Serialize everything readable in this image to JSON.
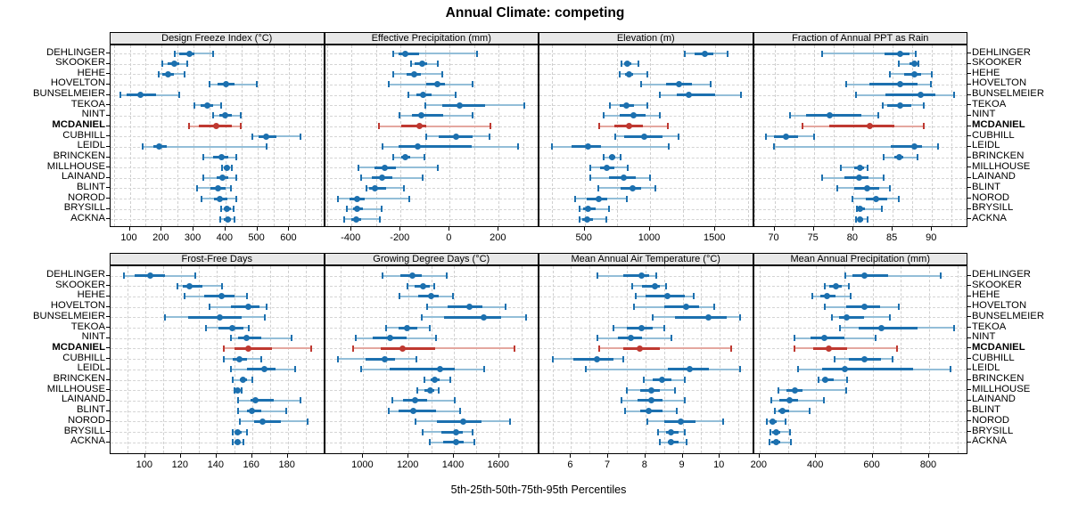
{
  "title": "Annual Climate: competing",
  "caption": "5th-25th-50th-75th-95th Percentiles",
  "colors": {
    "normal": "#1C70AF",
    "normal_light": "#93BED8",
    "highlight": "#BF3931",
    "highlight_light": "#E4A79F",
    "header_bg": "#E8E8E8",
    "grid": "#CFCFCF",
    "border": "#000000"
  },
  "chart_data": {
    "type": "dotplot",
    "title": "Annual Climate: competing",
    "caption": "5th-25th-50th-75th-95th Percentiles",
    "percentiles": [
      "5th",
      "25th",
      "50th",
      "75th",
      "95th"
    ],
    "legend_position": "none",
    "grid": "dashed",
    "stations": [
      "DEHLINGER",
      "SKOOKER",
      "HEHE",
      "HOVELTON",
      "BUNSELMEIER",
      "TEKOA",
      "NINT",
      "MCDANIEL",
      "CUBHILL",
      "LEIDL",
      "BRINCKEN",
      "MILLHOUSE",
      "LAINAND",
      "BLINT",
      "NOROD",
      "BRYSILL",
      "ACKNA"
    ],
    "highlight_station": "MCDANIEL",
    "panels": [
      {
        "title": "Design Freeze Index (°C)",
        "row": 0,
        "col": 0,
        "ticks": [
          100,
          200,
          300,
          400,
          500,
          600
        ],
        "xlim": [
          40,
          712
        ],
        "grid_step": 50,
        "values": [
          [
            240,
            256,
            286,
            303,
            362
          ],
          [
            203,
            219,
            240,
            254,
            280
          ],
          [
            191,
            201,
            219,
            238,
            273
          ],
          [
            350,
            376,
            401,
            427,
            497
          ],
          [
            70,
            89,
            135,
            182,
            256
          ],
          [
            303,
            322,
            343,
            362,
            387
          ],
          [
            362,
            380,
            399,
            419,
            447
          ],
          [
            286,
            317,
            371,
            419,
            447
          ],
          [
            485,
            503,
            528,
            559,
            635
          ],
          [
            140,
            173,
            193,
            216,
            529
          ],
          [
            331,
            362,
            389,
            408,
            433
          ],
          [
            390,
            396,
            405,
            412,
            421
          ],
          [
            331,
            373,
            391,
            410,
            433
          ],
          [
            310,
            352,
            377,
            401,
            417
          ],
          [
            326,
            364,
            382,
            405,
            433
          ],
          [
            387,
            394,
            405,
            417,
            426
          ],
          [
            385,
            396,
            408,
            418,
            429
          ]
        ]
      },
      {
        "title": "Effective Precipitation (mm)",
        "row": 0,
        "col": 1,
        "ticks": [
          -400,
          -200,
          0,
          200
        ],
        "xlim": [
          -508,
          366
        ],
        "grid_step": 100,
        "values": [
          [
            -230,
            -210,
            -180,
            -125,
            110
          ],
          [
            -158,
            -142,
            -113,
            -92,
            -47
          ],
          [
            -230,
            -176,
            -143,
            -116,
            -29
          ],
          [
            -248,
            -94,
            -49,
            -19,
            92
          ],
          [
            -170,
            -134,
            -110,
            -74,
            23
          ],
          [
            -98,
            -31,
            39,
            143,
            306
          ],
          [
            -206,
            -152,
            -116,
            -25,
            95
          ],
          [
            -288,
            -198,
            -122,
            -95,
            167
          ],
          [
            -94,
            -46,
            27,
            92,
            161
          ],
          [
            -275,
            -210,
            -130,
            90,
            280
          ],
          [
            -230,
            -198,
            -180,
            -161,
            -101
          ],
          [
            -371,
            -308,
            -264,
            -218,
            -49
          ],
          [
            -360,
            -318,
            -276,
            -234,
            -110
          ],
          [
            -339,
            -327,
            -306,
            -258,
            -186
          ],
          [
            -455,
            -407,
            -377,
            -347,
            -166
          ],
          [
            -420,
            -395,
            -376,
            -354,
            -278
          ],
          [
            -429,
            -399,
            -381,
            -359,
            -284
          ]
        ]
      },
      {
        "title": "Elevation (m)",
        "row": 0,
        "col": 2,
        "ticks": [
          500,
          1000,
          1500
        ],
        "xlim": [
          154,
          1795
        ],
        "grid_step": 250,
        "values": [
          [
            1266,
            1341,
            1418,
            1482,
            1591
          ],
          [
            784,
            805,
            827,
            857,
            914
          ],
          [
            770,
            811,
            841,
            873,
            977
          ],
          [
            932,
            1123,
            1220,
            1318,
            1464
          ],
          [
            1077,
            1205,
            1300,
            1500,
            1693
          ],
          [
            693,
            766,
            818,
            880,
            982
          ],
          [
            645,
            766,
            873,
            964,
            1077
          ],
          [
            611,
            727,
            839,
            948,
            1136
          ],
          [
            736,
            805,
            955,
            1095,
            1220
          ],
          [
            250,
            400,
            523,
            625,
            1140
          ],
          [
            645,
            686,
            709,
            736,
            773
          ],
          [
            545,
            615,
            670,
            727,
            827
          ],
          [
            545,
            686,
            800,
            890,
            1000
          ],
          [
            607,
            777,
            864,
            932,
            1039
          ],
          [
            425,
            516,
            607,
            675,
            823
          ],
          [
            459,
            486,
            523,
            584,
            686
          ],
          [
            459,
            482,
            516,
            561,
            668
          ]
        ]
      },
      {
        "title": "Fraction of Annual PPT as Rain",
        "row": 0,
        "col": 3,
        "ticks": [
          70,
          75,
          80,
          85,
          90
        ],
        "xlim": [
          67.4,
          94.6
        ],
        "grid_step": 2.5,
        "values": [
          [
            76,
            84,
            85.9,
            87.1,
            87.9
          ],
          [
            85.8,
            87.1,
            87.8,
            88.1,
            88.3
          ],
          [
            84.6,
            86.5,
            87.8,
            88.6,
            90
          ],
          [
            79.1,
            82,
            85.9,
            88.2,
            89.9
          ],
          [
            80.3,
            84.1,
            88.5,
            90.4,
            92.8
          ],
          [
            83.7,
            84.3,
            85.9,
            87.4,
            88.9
          ],
          [
            72,
            74,
            77,
            81,
            83.2
          ],
          [
            73.6,
            77,
            82.1,
            85.2,
            88.9
          ],
          [
            68.9,
            70,
            71.5,
            73,
            75
          ],
          [
            70,
            84.8,
            87.8,
            88.7,
            90.8
          ],
          [
            83.9,
            85.2,
            85.8,
            86.4,
            88.1
          ],
          [
            78.4,
            80.1,
            80.9,
            81.4,
            81.8
          ],
          [
            76,
            78.9,
            80.7,
            81.9,
            83.8
          ],
          [
            78,
            80.1,
            81.8,
            83.3,
            84.7
          ],
          [
            79.9,
            81.6,
            82.9,
            84.3,
            85.8
          ],
          [
            80.5,
            80.6,
            80.9,
            81.5,
            83.6
          ],
          [
            80.3,
            80.6,
            80.9,
            81.3,
            81.8
          ]
        ]
      },
      {
        "title": "Frost-Free Days",
        "row": 1,
        "col": 0,
        "ticks": [
          100,
          120,
          140,
          160,
          180
        ],
        "xlim": [
          80.6,
          200.9
        ],
        "grid_step": 10,
        "values": [
          [
            88,
            94,
            103,
            111,
            128
          ],
          [
            118,
            121,
            125,
            132,
            143
          ],
          [
            122,
            133,
            143,
            150,
            157
          ],
          [
            136,
            148,
            158,
            164,
            168
          ],
          [
            111,
            124,
            142,
            154,
            167
          ],
          [
            134,
            141,
            149,
            155,
            158
          ],
          [
            148,
            152,
            157,
            165,
            182
          ],
          [
            144,
            150,
            158,
            171,
            193
          ],
          [
            144,
            149,
            153,
            157,
            165
          ],
          [
            148,
            157,
            167,
            173,
            184
          ],
          [
            149,
            153,
            155,
            157,
            160
          ],
          [
            150,
            151,
            152,
            153,
            154
          ],
          [
            152,
            159,
            162,
            172,
            187
          ],
          [
            152,
            157,
            160,
            165,
            179
          ],
          [
            153,
            161,
            166,
            176,
            191
          ],
          [
            149,
            151,
            152,
            154,
            157
          ],
          [
            149,
            150,
            152,
            153,
            155
          ]
        ]
      },
      {
        "title": "Growing Degree Days (°C)",
        "row": 1,
        "col": 1,
        "ticks": [
          1000,
          1200,
          1400,
          1600
        ],
        "xlim": [
          831,
          1778
        ],
        "grid_step": 100,
        "values": [
          [
            1085,
            1165,
            1215,
            1260,
            1370
          ],
          [
            1197,
            1227,
            1263,
            1293,
            1315
          ],
          [
            1160,
            1243,
            1298,
            1335,
            1398
          ],
          [
            1282,
            1371,
            1469,
            1525,
            1627
          ],
          [
            1260,
            1355,
            1530,
            1610,
            1718
          ],
          [
            1100,
            1154,
            1193,
            1240,
            1293
          ],
          [
            965,
            1040,
            1120,
            1190,
            1322
          ],
          [
            954,
            1079,
            1173,
            1319,
            1666
          ],
          [
            890,
            1009,
            1096,
            1140,
            1236
          ],
          [
            990,
            1118,
            1339,
            1403,
            1534
          ],
          [
            1272,
            1298,
            1315,
            1337,
            1385
          ],
          [
            1240,
            1272,
            1295,
            1315,
            1335
          ],
          [
            1130,
            1177,
            1227,
            1282,
            1403
          ],
          [
            1114,
            1154,
            1219,
            1322,
            1429
          ],
          [
            1232,
            1324,
            1442,
            1521,
            1650
          ],
          [
            1263,
            1345,
            1411,
            1440,
            1482
          ],
          [
            1293,
            1354,
            1411,
            1442,
            1490
          ]
        ]
      },
      {
        "title": "Mean Annual Air Temperature (°C)",
        "row": 1,
        "col": 2,
        "ticks": [
          6,
          7,
          8,
          9,
          10
        ],
        "xlim": [
          5.15,
          10.92
        ],
        "grid_step": 0.5,
        "values": [
          [
            6.7,
            7.4,
            7.9,
            8.1,
            8.3
          ],
          [
            7.65,
            7.9,
            8.25,
            8.4,
            8.55
          ],
          [
            7.75,
            8,
            8.6,
            9.05,
            9.3
          ],
          [
            7.7,
            8.5,
            9.1,
            9.45,
            9.85
          ],
          [
            8.2,
            8.8,
            9.7,
            10.2,
            10.55
          ],
          [
            7.15,
            7.5,
            7.9,
            8.2,
            8.5
          ],
          [
            6.7,
            7.25,
            7.6,
            7.9,
            8.7
          ],
          [
            6.75,
            7.4,
            7.85,
            8.4,
            10.3
          ],
          [
            5.5,
            6.05,
            6.7,
            7.15,
            7.4
          ],
          [
            6.4,
            8.6,
            9.2,
            9.7,
            10.55
          ],
          [
            7.95,
            8.2,
            8.45,
            8.7,
            9.05
          ],
          [
            7.5,
            7.85,
            8.15,
            8.4,
            8.8
          ],
          [
            7.35,
            7.8,
            8.15,
            8.45,
            9.05
          ],
          [
            7.45,
            7.85,
            8.1,
            8.45,
            8.85
          ],
          [
            8.05,
            8.5,
            8.95,
            9.35,
            10.1
          ],
          [
            8.35,
            8.55,
            8.7,
            8.9,
            9.05
          ],
          [
            8.4,
            8.6,
            8.7,
            8.9,
            9.1
          ]
        ]
      },
      {
        "title": "Mean Annual Precipitation (mm)",
        "row": 1,
        "col": 3,
        "ticks": [
          200,
          400,
          600,
          800
        ],
        "xlim": [
          180,
          939
        ],
        "grid_step": 100,
        "values": [
          [
            505,
            530,
            570,
            655,
            840
          ],
          [
            430,
            447,
            470,
            490,
            515
          ],
          [
            387,
            415,
            440,
            468,
            523
          ],
          [
            430,
            507,
            572,
            628,
            694
          ],
          [
            457,
            481,
            509,
            570,
            660
          ],
          [
            485,
            550,
            630,
            760,
            890
          ],
          [
            325,
            380,
            430,
            500,
            610
          ],
          [
            325,
            390,
            445,
            510,
            685
          ],
          [
            467,
            516,
            570,
            631,
            670
          ],
          [
            337,
            421,
            502,
            743,
            875
          ],
          [
            408,
            421,
            434,
            463,
            510
          ],
          [
            266,
            296,
            324,
            352,
            507
          ],
          [
            243,
            271,
            306,
            337,
            429
          ],
          [
            253,
            266,
            280,
            306,
            376
          ],
          [
            226,
            235,
            247,
            261,
            292
          ],
          [
            237,
            245,
            259,
            274,
            308
          ],
          [
            235,
            243,
            258,
            274,
            310
          ]
        ]
      }
    ]
  }
}
